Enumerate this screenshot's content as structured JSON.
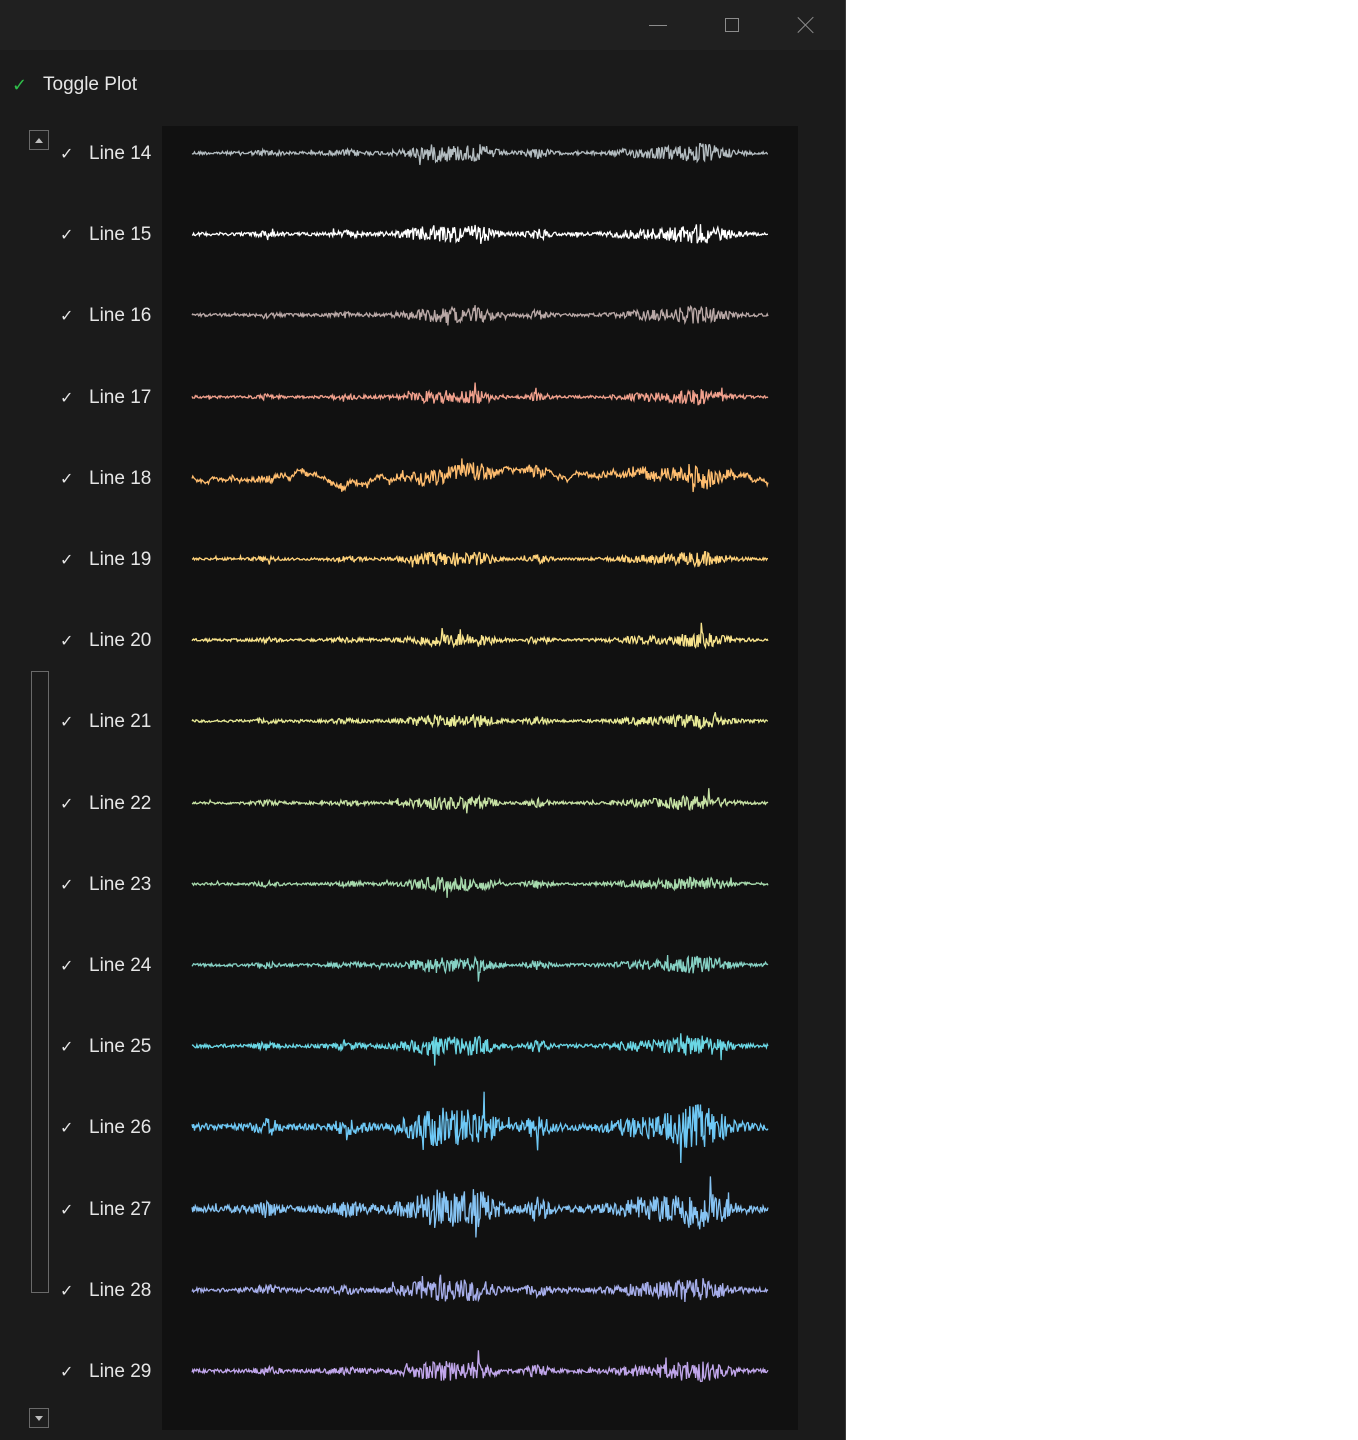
{
  "window": {
    "controls": {
      "minimize": "minimize-icon",
      "maximize": "maximize-icon",
      "close": "close-icon"
    }
  },
  "toggle_plot": {
    "checked": true,
    "label": "Toggle Plot",
    "check_color": "#2fbf4a"
  },
  "lines": [
    {
      "label": "Line 14",
      "checked": true,
      "color": "#b3bcc0",
      "amplitude": 0.45
    },
    {
      "label": "Line 15",
      "checked": true,
      "color": "#ffffff",
      "amplitude": 0.45
    },
    {
      "label": "Line 16",
      "checked": true,
      "color": "#b9a8a6",
      "amplitude": 0.4
    },
    {
      "label": "Line 17",
      "checked": true,
      "color": "#f0a08c",
      "amplitude": 0.35
    },
    {
      "label": "Line 18",
      "checked": true,
      "color": "#ffbd6e",
      "amplitude": 0.95
    },
    {
      "label": "Line 19",
      "checked": true,
      "color": "#ffd27a",
      "amplitude": 0.35
    },
    {
      "label": "Line 20",
      "checked": true,
      "color": "#f8e38c",
      "amplitude": 0.35
    },
    {
      "label": "Line 21",
      "checked": true,
      "color": "#e8ea96",
      "amplitude": 0.35
    },
    {
      "label": "Line 22",
      "checked": true,
      "color": "#c7e2a4",
      "amplitude": 0.35
    },
    {
      "label": "Line 23",
      "checked": true,
      "color": "#a7d9ac",
      "amplitude": 0.35
    },
    {
      "label": "Line 24",
      "checked": true,
      "color": "#86d1c4",
      "amplitude": 0.4
    },
    {
      "label": "Line 25",
      "checked": true,
      "color": "#6ad6e4",
      "amplitude": 0.5
    },
    {
      "label": "Line 26",
      "checked": true,
      "color": "#6ec8f5",
      "amplitude": 1.0
    },
    {
      "label": "Line 27",
      "checked": true,
      "color": "#86c3f3",
      "amplitude": 1.0
    },
    {
      "label": "Line 28",
      "checked": true,
      "color": "#a6aeea",
      "amplitude": 0.6
    },
    {
      "label": "Line 29",
      "checked": true,
      "color": "#c0a6ea",
      "amplitude": 0.5
    }
  ]
}
